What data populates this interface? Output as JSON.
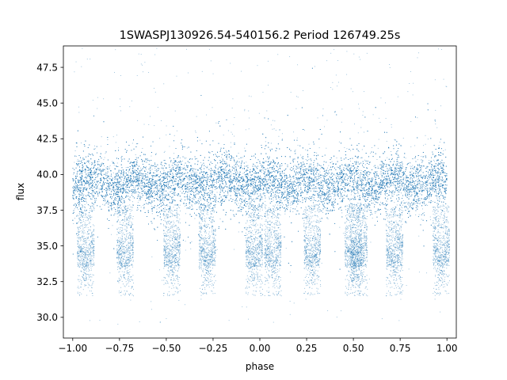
{
  "chart_data": {
    "type": "scatter",
    "title": "1SWASPJ130926.54-540156.2 Period 126749.25s",
    "xlabel": "phase",
    "ylabel": "flux",
    "xlim": [
      -1.05,
      1.05
    ],
    "ylim": [
      28.55,
      49.0
    ],
    "xticks": [
      -1.0,
      -0.75,
      -0.5,
      -0.25,
      0.0,
      0.25,
      0.5,
      0.75,
      1.0
    ],
    "xtick_labels": [
      "−1.00",
      "−0.75",
      "−0.50",
      "−0.25",
      "0.00",
      "0.25",
      "0.50",
      "0.75",
      "1.00"
    ],
    "yticks": [
      30.0,
      32.5,
      35.0,
      37.5,
      40.0,
      42.5,
      45.0,
      47.5
    ],
    "ytick_labels": [
      "30.0",
      "32.5",
      "35.0",
      "37.5",
      "40.0",
      "42.5",
      "45.0",
      "47.5"
    ],
    "grid": false,
    "marker_color": "#1f77b4",
    "series": [
      {
        "description": "dense band of points across all phases",
        "x_range": [
          -1.0,
          1.0
        ],
        "y_center": 39.4,
        "y_spread": 1.2,
        "points_approx": 20000
      },
      {
        "description": "periodic dips to lower flux",
        "dip_centers": [
          -0.93,
          -0.72,
          -0.47,
          -0.28,
          -0.03,
          0.07,
          0.28,
          0.5,
          0.53,
          0.72,
          0.97
        ],
        "dip_floor_y": 33.5,
        "dip_min_y": 31.5
      },
      {
        "description": "sparse outliers",
        "y_range": [
          29.5,
          48.9
        ]
      }
    ]
  }
}
